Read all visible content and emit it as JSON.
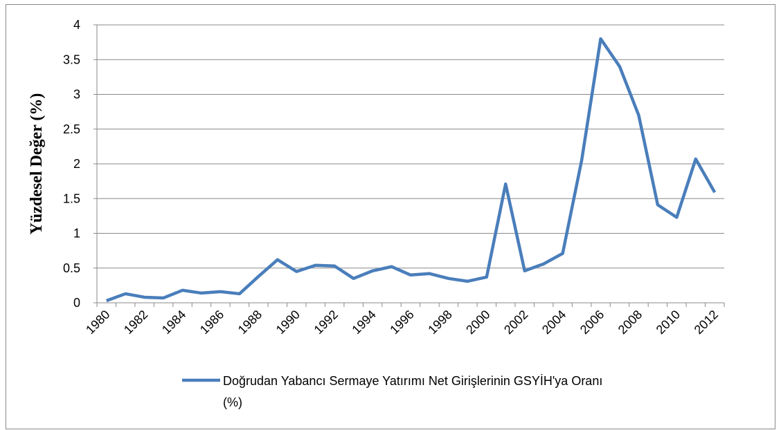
{
  "chart_data": {
    "type": "line",
    "y_label": "Yüzdesel Değer (%)",
    "categories": [
      "1980",
      null,
      "1982",
      null,
      "1984",
      null,
      "1986",
      null,
      "1988",
      null,
      "1990",
      null,
      "1992",
      null,
      "1994",
      null,
      "1996",
      null,
      "1998",
      null,
      "2000",
      null,
      "2002",
      null,
      "2004",
      null,
      "2006",
      null,
      "2008",
      null,
      "2010",
      null,
      "2012"
    ],
    "series": [
      {
        "name": "Doğrudan Yabancı Sermaye Yatırımı Net Girişlerinin GSYİH'ya Oranı (%)",
        "color": "#4a7ebb",
        "values": [
          0.03,
          0.13,
          0.08,
          0.07,
          0.18,
          0.14,
          0.16,
          0.13,
          0.38,
          0.62,
          0.45,
          0.54,
          0.53,
          0.35,
          0.46,
          0.52,
          0.4,
          0.42,
          0.35,
          0.31,
          0.37,
          1.71,
          0.46,
          0.56,
          0.71,
          2.05,
          3.8,
          3.4,
          2.7,
          1.41,
          1.23,
          2.07,
          1.59
        ]
      }
    ],
    "ylim": [
      0,
      4
    ],
    "yticks": [
      0,
      0.5,
      1,
      1.5,
      2,
      2.5,
      3,
      3.5,
      4
    ],
    "grid": true,
    "legend": "bottom"
  }
}
